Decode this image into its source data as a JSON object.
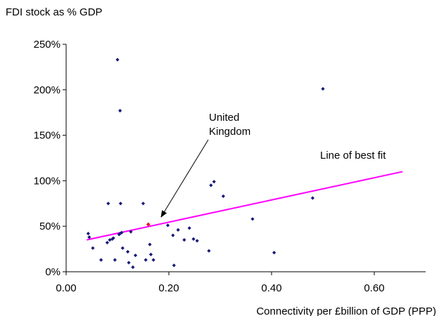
{
  "chart_data": {
    "type": "scatter",
    "ylabel": "FDI stock as % GDP",
    "xlabel": "Connectivity per £billion of GDP (PPP)",
    "xlim": [
      0,
      0.7
    ],
    "ylim": [
      0,
      250
    ],
    "x_ticks": [
      "0.00",
      "0.20",
      "0.40",
      "0.60"
    ],
    "x_tick_values": [
      0,
      0.2,
      0.4,
      0.6
    ],
    "y_ticks": [
      "0%",
      "50%",
      "100%",
      "150%",
      "200%",
      "250%"
    ],
    "y_tick_values": [
      0,
      50,
      100,
      150,
      200,
      250
    ],
    "grid": false,
    "colors": {
      "points": "#1a1a7a",
      "highlight": "#e8192c",
      "fit_line": "#ff00ff"
    },
    "points": [
      {
        "x": 0.043,
        "y": 42
      },
      {
        "x": 0.045,
        "y": 38
      },
      {
        "x": 0.052,
        "y": 26
      },
      {
        "x": 0.068,
        "y": 13
      },
      {
        "x": 0.08,
        "y": 32
      },
      {
        "x": 0.082,
        "y": 75
      },
      {
        "x": 0.085,
        "y": 35
      },
      {
        "x": 0.09,
        "y": 36
      },
      {
        "x": 0.092,
        "y": 37
      },
      {
        "x": 0.095,
        "y": 13
      },
      {
        "x": 0.1,
        "y": 233
      },
      {
        "x": 0.103,
        "y": 41
      },
      {
        "x": 0.105,
        "y": 42
      },
      {
        "x": 0.105,
        "y": 177
      },
      {
        "x": 0.106,
        "y": 75
      },
      {
        "x": 0.108,
        "y": 43
      },
      {
        "x": 0.11,
        "y": 26
      },
      {
        "x": 0.12,
        "y": 22
      },
      {
        "x": 0.122,
        "y": 10
      },
      {
        "x": 0.126,
        "y": 44
      },
      {
        "x": 0.13,
        "y": 5
      },
      {
        "x": 0.135,
        "y": 18
      },
      {
        "x": 0.15,
        "y": 75
      },
      {
        "x": 0.155,
        "y": 13
      },
      {
        "x": 0.163,
        "y": 30
      },
      {
        "x": 0.165,
        "y": 19
      },
      {
        "x": 0.17,
        "y": 13
      },
      {
        "x": 0.198,
        "y": 51
      },
      {
        "x": 0.208,
        "y": 40
      },
      {
        "x": 0.21,
        "y": 7
      },
      {
        "x": 0.218,
        "y": 46
      },
      {
        "x": 0.23,
        "y": 35
      },
      {
        "x": 0.24,
        "y": 48
      },
      {
        "x": 0.248,
        "y": 36
      },
      {
        "x": 0.255,
        "y": 34
      },
      {
        "x": 0.278,
        "y": 23
      },
      {
        "x": 0.282,
        "y": 95
      },
      {
        "x": 0.288,
        "y": 99
      },
      {
        "x": 0.306,
        "y": 83
      },
      {
        "x": 0.363,
        "y": 58
      },
      {
        "x": 0.405,
        "y": 21
      },
      {
        "x": 0.48,
        "y": 81
      },
      {
        "x": 0.5,
        "y": 201
      }
    ],
    "highlight_point": {
      "x": 0.16,
      "y": 52
    },
    "fit_line": {
      "x1": 0.04,
      "y1": 35,
      "x2": 0.655,
      "y2": 110
    },
    "annotations": {
      "uk_line1": "United",
      "uk_line2": "Kingdom",
      "fit_label": "Line of best fit"
    }
  }
}
